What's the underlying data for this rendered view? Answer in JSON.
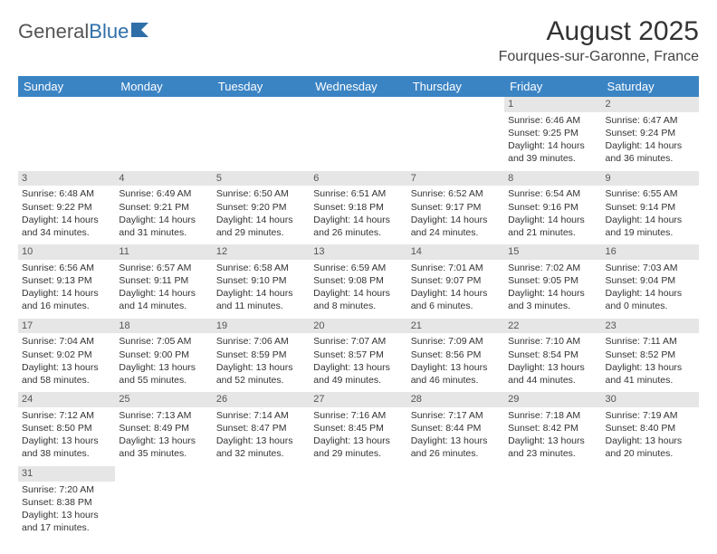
{
  "logo": {
    "text1": "General",
    "text2": "Blue",
    "icon_color": "#2f6fa8"
  },
  "title": "August 2025",
  "location": "Fourques-sur-Garonne, France",
  "colors": {
    "header_bg": "#3b84c4",
    "header_fg": "#ffffff",
    "daynum_bg": "#e6e6e6",
    "daynum_fg": "#555555",
    "text": "#333333",
    "background": "#ffffff"
  },
  "weekdays": [
    "Sunday",
    "Monday",
    "Tuesday",
    "Wednesday",
    "Thursday",
    "Friday",
    "Saturday"
  ],
  "weeks": [
    [
      null,
      null,
      null,
      null,
      null,
      {
        "n": "1",
        "sr": "Sunrise: 6:46 AM",
        "ss": "Sunset: 9:25 PM",
        "dl": "Daylight: 14 hours and 39 minutes."
      },
      {
        "n": "2",
        "sr": "Sunrise: 6:47 AM",
        "ss": "Sunset: 9:24 PM",
        "dl": "Daylight: 14 hours and 36 minutes."
      }
    ],
    [
      {
        "n": "3",
        "sr": "Sunrise: 6:48 AM",
        "ss": "Sunset: 9:22 PM",
        "dl": "Daylight: 14 hours and 34 minutes."
      },
      {
        "n": "4",
        "sr": "Sunrise: 6:49 AM",
        "ss": "Sunset: 9:21 PM",
        "dl": "Daylight: 14 hours and 31 minutes."
      },
      {
        "n": "5",
        "sr": "Sunrise: 6:50 AM",
        "ss": "Sunset: 9:20 PM",
        "dl": "Daylight: 14 hours and 29 minutes."
      },
      {
        "n": "6",
        "sr": "Sunrise: 6:51 AM",
        "ss": "Sunset: 9:18 PM",
        "dl": "Daylight: 14 hours and 26 minutes."
      },
      {
        "n": "7",
        "sr": "Sunrise: 6:52 AM",
        "ss": "Sunset: 9:17 PM",
        "dl": "Daylight: 14 hours and 24 minutes."
      },
      {
        "n": "8",
        "sr": "Sunrise: 6:54 AM",
        "ss": "Sunset: 9:16 PM",
        "dl": "Daylight: 14 hours and 21 minutes."
      },
      {
        "n": "9",
        "sr": "Sunrise: 6:55 AM",
        "ss": "Sunset: 9:14 PM",
        "dl": "Daylight: 14 hours and 19 minutes."
      }
    ],
    [
      {
        "n": "10",
        "sr": "Sunrise: 6:56 AM",
        "ss": "Sunset: 9:13 PM",
        "dl": "Daylight: 14 hours and 16 minutes."
      },
      {
        "n": "11",
        "sr": "Sunrise: 6:57 AM",
        "ss": "Sunset: 9:11 PM",
        "dl": "Daylight: 14 hours and 14 minutes."
      },
      {
        "n": "12",
        "sr": "Sunrise: 6:58 AM",
        "ss": "Sunset: 9:10 PM",
        "dl": "Daylight: 14 hours and 11 minutes."
      },
      {
        "n": "13",
        "sr": "Sunrise: 6:59 AM",
        "ss": "Sunset: 9:08 PM",
        "dl": "Daylight: 14 hours and 8 minutes."
      },
      {
        "n": "14",
        "sr": "Sunrise: 7:01 AM",
        "ss": "Sunset: 9:07 PM",
        "dl": "Daylight: 14 hours and 6 minutes."
      },
      {
        "n": "15",
        "sr": "Sunrise: 7:02 AM",
        "ss": "Sunset: 9:05 PM",
        "dl": "Daylight: 14 hours and 3 minutes."
      },
      {
        "n": "16",
        "sr": "Sunrise: 7:03 AM",
        "ss": "Sunset: 9:04 PM",
        "dl": "Daylight: 14 hours and 0 minutes."
      }
    ],
    [
      {
        "n": "17",
        "sr": "Sunrise: 7:04 AM",
        "ss": "Sunset: 9:02 PM",
        "dl": "Daylight: 13 hours and 58 minutes."
      },
      {
        "n": "18",
        "sr": "Sunrise: 7:05 AM",
        "ss": "Sunset: 9:00 PM",
        "dl": "Daylight: 13 hours and 55 minutes."
      },
      {
        "n": "19",
        "sr": "Sunrise: 7:06 AM",
        "ss": "Sunset: 8:59 PM",
        "dl": "Daylight: 13 hours and 52 minutes."
      },
      {
        "n": "20",
        "sr": "Sunrise: 7:07 AM",
        "ss": "Sunset: 8:57 PM",
        "dl": "Daylight: 13 hours and 49 minutes."
      },
      {
        "n": "21",
        "sr": "Sunrise: 7:09 AM",
        "ss": "Sunset: 8:56 PM",
        "dl": "Daylight: 13 hours and 46 minutes."
      },
      {
        "n": "22",
        "sr": "Sunrise: 7:10 AM",
        "ss": "Sunset: 8:54 PM",
        "dl": "Daylight: 13 hours and 44 minutes."
      },
      {
        "n": "23",
        "sr": "Sunrise: 7:11 AM",
        "ss": "Sunset: 8:52 PM",
        "dl": "Daylight: 13 hours and 41 minutes."
      }
    ],
    [
      {
        "n": "24",
        "sr": "Sunrise: 7:12 AM",
        "ss": "Sunset: 8:50 PM",
        "dl": "Daylight: 13 hours and 38 minutes."
      },
      {
        "n": "25",
        "sr": "Sunrise: 7:13 AM",
        "ss": "Sunset: 8:49 PM",
        "dl": "Daylight: 13 hours and 35 minutes."
      },
      {
        "n": "26",
        "sr": "Sunrise: 7:14 AM",
        "ss": "Sunset: 8:47 PM",
        "dl": "Daylight: 13 hours and 32 minutes."
      },
      {
        "n": "27",
        "sr": "Sunrise: 7:16 AM",
        "ss": "Sunset: 8:45 PM",
        "dl": "Daylight: 13 hours and 29 minutes."
      },
      {
        "n": "28",
        "sr": "Sunrise: 7:17 AM",
        "ss": "Sunset: 8:44 PM",
        "dl": "Daylight: 13 hours and 26 minutes."
      },
      {
        "n": "29",
        "sr": "Sunrise: 7:18 AM",
        "ss": "Sunset: 8:42 PM",
        "dl": "Daylight: 13 hours and 23 minutes."
      },
      {
        "n": "30",
        "sr": "Sunrise: 7:19 AM",
        "ss": "Sunset: 8:40 PM",
        "dl": "Daylight: 13 hours and 20 minutes."
      }
    ],
    [
      {
        "n": "31",
        "sr": "Sunrise: 7:20 AM",
        "ss": "Sunset: 8:38 PM",
        "dl": "Daylight: 13 hours and 17 minutes."
      },
      null,
      null,
      null,
      null,
      null,
      null
    ]
  ]
}
